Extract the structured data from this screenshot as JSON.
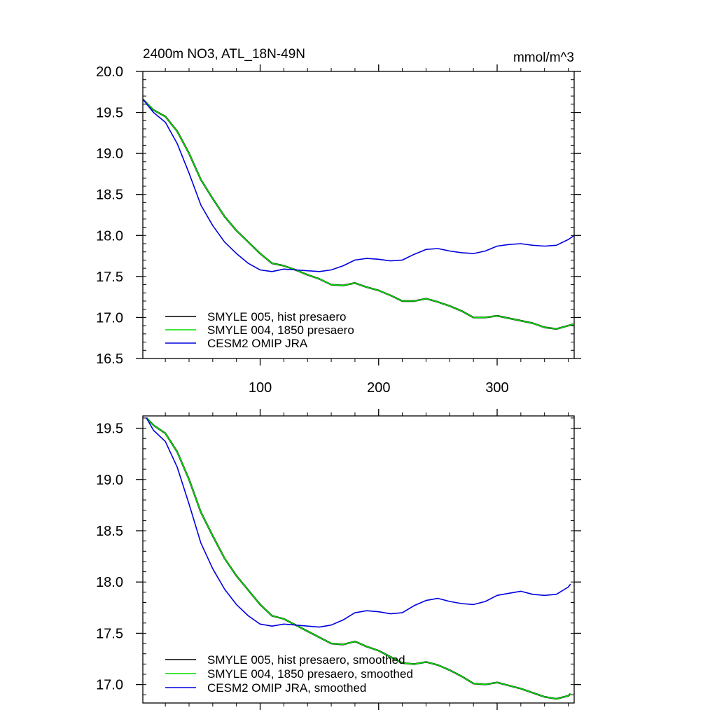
{
  "title_left": "2400m NO3, ATL_18N-49N",
  "title_right": "mmol/m^3",
  "colors": {
    "black": "#000000",
    "green": "#00dd00",
    "blue": "#0000dd"
  },
  "chart_data": [
    {
      "type": "line",
      "xlim": [
        1,
        365
      ],
      "ylim": [
        16.5,
        20.0
      ],
      "yticks": [
        16.5,
        17.0,
        17.5,
        18.0,
        18.5,
        19.0,
        19.5,
        20.0
      ],
      "ytick_labels": [
        "16.5",
        "17.0",
        "17.5",
        "18.0",
        "18.5",
        "19.0",
        "19.5",
        "20.0"
      ],
      "xticks": [
        100,
        200,
        300
      ],
      "xtick_labels": [
        "100",
        "200",
        "300"
      ],
      "legend": "bottom-left",
      "series": [
        {
          "name": "SMYLE 005, hist presaero",
          "color": "#000000",
          "x": [
            1,
            10,
            20,
            30,
            40,
            50,
            60,
            70,
            80,
            90,
            100,
            110,
            120,
            130,
            140,
            150,
            160,
            170,
            180,
            190,
            200,
            210,
            220,
            230,
            240,
            250,
            260,
            270,
            280,
            290,
            300,
            310,
            320,
            330,
            340,
            350,
            360,
            365
          ],
          "y": [
            19.66,
            19.53,
            19.45,
            19.27,
            19.0,
            18.68,
            18.45,
            18.23,
            18.06,
            17.92,
            17.78,
            17.66,
            17.63,
            17.58,
            17.52,
            17.47,
            17.4,
            17.39,
            17.42,
            17.37,
            17.33,
            17.27,
            17.2,
            17.2,
            17.23,
            17.19,
            17.14,
            17.08,
            17.0,
            17.0,
            17.02,
            16.99,
            16.96,
            16.93,
            16.88,
            16.86,
            16.9,
            16.92
          ]
        },
        {
          "name": "SMYLE 004, 1850 presaero",
          "color": "#00dd00",
          "x": [
            1,
            10,
            20,
            30,
            40,
            50,
            60,
            70,
            80,
            90,
            100,
            110,
            120,
            130,
            140,
            150,
            160,
            170,
            180,
            190,
            200,
            210,
            220,
            230,
            240,
            250,
            260,
            270,
            280,
            290,
            300,
            310,
            320,
            330,
            340,
            350,
            360,
            365
          ],
          "y": [
            19.66,
            19.53,
            19.45,
            19.27,
            19.0,
            18.68,
            18.45,
            18.23,
            18.06,
            17.92,
            17.78,
            17.66,
            17.63,
            17.58,
            17.52,
            17.47,
            17.4,
            17.39,
            17.42,
            17.37,
            17.33,
            17.27,
            17.2,
            17.2,
            17.23,
            17.19,
            17.14,
            17.08,
            17.0,
            17.0,
            17.02,
            16.99,
            16.96,
            16.93,
            16.88,
            16.86,
            16.9,
            16.92
          ]
        },
        {
          "name": "CESM2 OMIP JRA",
          "color": "#0000dd",
          "x": [
            1,
            10,
            20,
            30,
            40,
            50,
            60,
            70,
            80,
            90,
            100,
            110,
            120,
            130,
            140,
            150,
            160,
            170,
            180,
            190,
            200,
            210,
            220,
            230,
            240,
            250,
            260,
            270,
            280,
            290,
            300,
            310,
            320,
            330,
            340,
            350,
            360,
            365
          ],
          "y": [
            19.66,
            19.5,
            19.38,
            19.12,
            18.76,
            18.37,
            18.12,
            17.92,
            17.78,
            17.66,
            17.58,
            17.56,
            17.59,
            17.58,
            17.57,
            17.56,
            17.58,
            17.63,
            17.7,
            17.72,
            17.71,
            17.69,
            17.7,
            17.77,
            17.83,
            17.84,
            17.81,
            17.79,
            17.78,
            17.81,
            17.87,
            17.89,
            17.9,
            17.88,
            17.87,
            17.88,
            17.95,
            18.0
          ]
        }
      ]
    },
    {
      "type": "line",
      "xlim": [
        1,
        365
      ],
      "ylim": [
        16.82,
        19.62
      ],
      "yticks": [
        17.0,
        17.5,
        18.0,
        18.5,
        19.0,
        19.5
      ],
      "ytick_labels": [
        "17.0",
        "17.5",
        "18.0",
        "18.5",
        "19.0",
        "19.5"
      ],
      "xticks": [
        100,
        200,
        300
      ],
      "legend": "bottom-left",
      "series": [
        {
          "name": "SMYLE 005, hist presaero, smoothed",
          "color": "#000000",
          "x": [
            4,
            10,
            20,
            30,
            40,
            50,
            60,
            70,
            80,
            90,
            100,
            110,
            120,
            130,
            140,
            150,
            160,
            170,
            180,
            190,
            200,
            210,
            220,
            230,
            240,
            250,
            260,
            270,
            280,
            290,
            300,
            310,
            320,
            330,
            340,
            350,
            360,
            362
          ],
          "y": [
            19.6,
            19.53,
            19.45,
            19.27,
            19.0,
            18.68,
            18.45,
            18.23,
            18.06,
            17.92,
            17.78,
            17.67,
            17.64,
            17.58,
            17.52,
            17.46,
            17.4,
            17.39,
            17.42,
            17.37,
            17.33,
            17.27,
            17.21,
            17.2,
            17.22,
            17.19,
            17.14,
            17.08,
            17.01,
            17.0,
            17.02,
            16.99,
            16.96,
            16.92,
            16.88,
            16.86,
            16.89,
            16.91
          ]
        },
        {
          "name": "SMYLE 004, 1850 presaero, smoothed",
          "color": "#00dd00",
          "x": [
            4,
            10,
            20,
            30,
            40,
            50,
            60,
            70,
            80,
            90,
            100,
            110,
            120,
            130,
            140,
            150,
            160,
            170,
            180,
            190,
            200,
            210,
            220,
            230,
            240,
            250,
            260,
            270,
            280,
            290,
            300,
            310,
            320,
            330,
            340,
            350,
            360,
            362
          ],
          "y": [
            19.6,
            19.53,
            19.45,
            19.27,
            19.0,
            18.68,
            18.45,
            18.23,
            18.06,
            17.92,
            17.78,
            17.67,
            17.64,
            17.58,
            17.52,
            17.46,
            17.4,
            17.39,
            17.42,
            17.37,
            17.33,
            17.27,
            17.21,
            17.2,
            17.22,
            17.19,
            17.14,
            17.08,
            17.01,
            17.0,
            17.02,
            16.99,
            16.96,
            16.92,
            16.88,
            16.86,
            16.89,
            16.91
          ]
        },
        {
          "name": "CESM2 OMIP JRA, smoothed",
          "color": "#0000dd",
          "x": [
            4,
            10,
            20,
            30,
            40,
            50,
            60,
            70,
            80,
            90,
            100,
            110,
            120,
            130,
            140,
            150,
            160,
            170,
            180,
            190,
            200,
            210,
            220,
            230,
            240,
            250,
            260,
            270,
            280,
            290,
            300,
            310,
            320,
            330,
            340,
            350,
            360,
            362
          ],
          "y": [
            19.6,
            19.48,
            19.37,
            19.12,
            18.76,
            18.38,
            18.13,
            17.93,
            17.78,
            17.67,
            17.59,
            17.57,
            17.59,
            17.58,
            17.57,
            17.56,
            17.58,
            17.63,
            17.7,
            17.72,
            17.71,
            17.69,
            17.7,
            17.77,
            17.82,
            17.84,
            17.81,
            17.79,
            17.78,
            17.81,
            17.87,
            17.89,
            17.91,
            17.88,
            17.87,
            17.88,
            17.95,
            17.98
          ]
        }
      ]
    }
  ]
}
